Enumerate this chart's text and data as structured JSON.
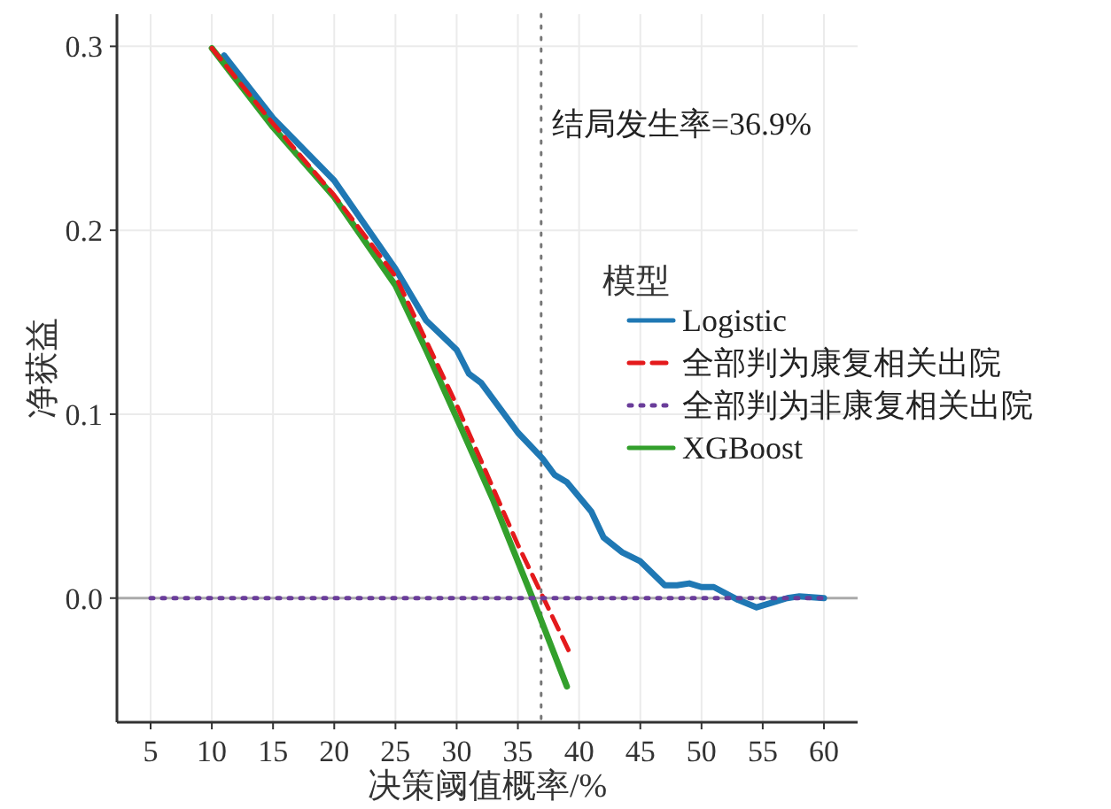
{
  "chart_data": {
    "type": "line",
    "xlabel": "决策阈值概率/%",
    "ylabel": "净获益",
    "legend_title": "模型",
    "legend": "right",
    "xlim": [
      2.25,
      62.75
    ],
    "ylim": [
      -0.0675,
      0.3175
    ],
    "xticks": [
      5,
      10,
      15,
      20,
      25,
      30,
      35,
      40,
      45,
      50,
      55,
      60
    ],
    "yticks": [
      {
        "value": 0,
        "label": "0.0"
      },
      {
        "value": 0.1,
        "label": "0.1"
      },
      {
        "value": 0.2,
        "label": "0.2"
      },
      {
        "value": 0.3,
        "label": "0.3"
      }
    ],
    "grid": true,
    "ref_lines": [
      {
        "axis": "x",
        "value": 36.9,
        "label": "结局发生率=36.9%",
        "color": "#777777",
        "line_style": "dotted"
      },
      {
        "axis": "y",
        "value": 0,
        "color": "#aaaaaa",
        "line_style": "solid"
      }
    ],
    "series": [
      {
        "name": "Logistic",
        "color": "#1f78b4",
        "line_style": "solid",
        "x": [
          11,
          15,
          20,
          25,
          27.5,
          30,
          31,
          32,
          35,
          37,
          38,
          39,
          41,
          42,
          43.5,
          45,
          47,
          48,
          49,
          50,
          51,
          53,
          54.5,
          56,
          57,
          58,
          60
        ],
        "values": [
          0.295,
          0.261,
          0.227,
          0.179,
          0.151,
          0.135,
          0.122,
          0.117,
          0.09,
          0.076,
          0.067,
          0.063,
          0.047,
          0.033,
          0.025,
          0.02,
          0.007,
          0.007,
          0.008,
          0.006,
          0.006,
          -0.001,
          -0.005,
          -0.002,
          0,
          0.001,
          0
        ]
      },
      {
        "name": "全部判为康复相关出院",
        "color": "#e41a1c",
        "line_style": "dashed",
        "x": [
          10,
          15,
          20,
          25,
          27.5,
          30,
          35,
          39.4
        ],
        "values": [
          0.299,
          0.258,
          0.219,
          0.175,
          0.14,
          0.105,
          0.029,
          -0.032
        ]
      },
      {
        "name": "全部判为非康复相关出院",
        "color": "#6a3d9a",
        "line_style": "dotted",
        "x": [
          5,
          60
        ],
        "values": [
          0,
          0
        ]
      },
      {
        "name": "XGBoost",
        "color": "#33a02c",
        "line_style": "solid",
        "x": [
          10,
          15,
          20,
          25,
          27.5,
          30,
          33,
          36.2,
          39
        ],
        "values": [
          0.299,
          0.256,
          0.218,
          0.17,
          0.135,
          0.098,
          0.053,
          0,
          -0.048
        ]
      }
    ]
  }
}
